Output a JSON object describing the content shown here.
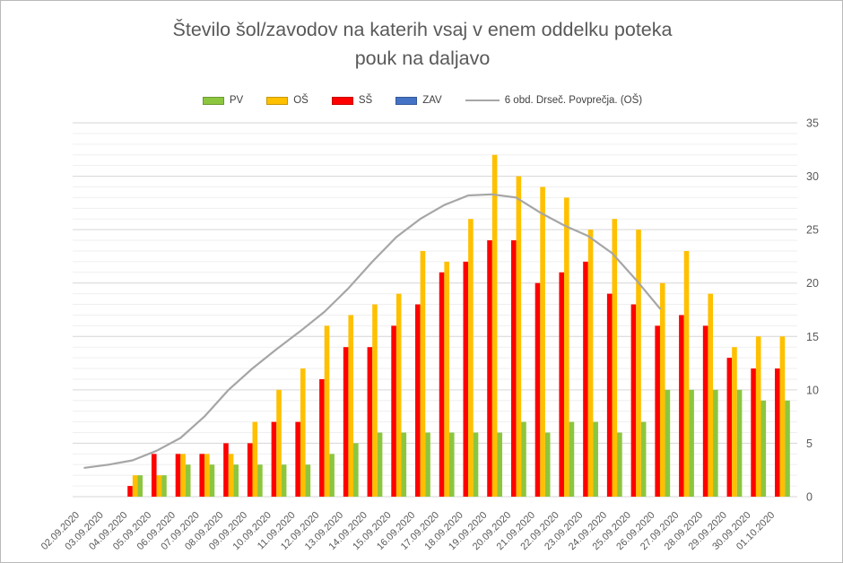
{
  "title": {
    "line1": "Število šol/zavodov na katerih vsaj v enem oddelku poteka",
    "line2": "pouk na daljavo"
  },
  "colors": {
    "pv_green": "#8CC63F",
    "os_yellow": "#FFC000",
    "ss_red": "#FF0000",
    "zav_blue": "#4472C4",
    "ma_gray": "#A6A6A6",
    "text_gray": "#595959",
    "grid_major": "#D6D6D6",
    "grid_minor": "#EFEFEF"
  },
  "chart_data": {
    "type": "bar",
    "title": "Število šol/zavodov na katerih vsaj v enem oddelku poteka pouk na daljavo",
    "xlabel": "",
    "ylabel": "",
    "ylim": [
      0,
      35
    ],
    "y_ticks": [
      0,
      5,
      10,
      15,
      20,
      25,
      30,
      35
    ],
    "y_axis_side": "right",
    "grid": {
      "minor_step": 1,
      "major_step": 5
    },
    "legend_position": "top",
    "categories": [
      "02.09.2020",
      "03.09.2020",
      "04.09.2020",
      "05.09.2020",
      "06.09.2020",
      "07.09.2020",
      "08.09.2020",
      "09.09.2020",
      "10.09.2020",
      "11.09.2020",
      "12.09.2020",
      "13.09.2020",
      "14.09.2020",
      "15.09.2020",
      "16.09.2020",
      "17.09.2020",
      "18.09.2020",
      "19.09.2020",
      "20.09.2020",
      "21.09.2020",
      "22.09.2020",
      "23.09.2020",
      "24.09.2020",
      "25.09.2020",
      "26.09.2020",
      "27.09.2020",
      "28.09.2020",
      "29.09.2020",
      "30.09.2020",
      "01.10.2020"
    ],
    "series": [
      {
        "name": "PV",
        "type": "bar",
        "color": "#8CC63F",
        "values": [
          0,
          0,
          2,
          2,
          3,
          3,
          3,
          3,
          3,
          3,
          4,
          5,
          6,
          6,
          6,
          6,
          6,
          6,
          7,
          6,
          7,
          7,
          6,
          7,
          10,
          10,
          10,
          10,
          9,
          9
        ]
      },
      {
        "name": "OŠ",
        "type": "bar",
        "color": "#FFC000",
        "values": [
          0,
          0,
          2,
          2,
          4,
          4,
          4,
          7,
          10,
          12,
          16,
          17,
          18,
          19,
          23,
          22,
          26,
          32,
          30,
          29,
          28,
          25,
          26,
          25,
          20,
          23,
          19,
          14,
          15,
          15
        ]
      },
      {
        "name": "SŠ",
        "type": "bar",
        "color": "#FF0000",
        "values": [
          0,
          0,
          1,
          4,
          4,
          4,
          5,
          5,
          7,
          7,
          11,
          14,
          14,
          16,
          18,
          21,
          22,
          24,
          24,
          20,
          21,
          22,
          19,
          18,
          16,
          17,
          16,
          13,
          12,
          12
        ]
      },
      {
        "name": "ZAV",
        "type": "bar",
        "color": "#4472C4",
        "values": [
          0,
          0,
          0,
          0,
          0,
          0,
          0,
          0,
          0,
          0,
          0,
          0,
          0,
          0,
          0,
          0,
          0,
          0,
          0,
          0,
          0,
          0,
          0,
          0,
          0,
          0,
          0,
          0,
          0,
          0
        ]
      },
      {
        "name": "6 obd. Drseč. Povprečja. (OŠ)",
        "type": "line",
        "color": "#A6A6A6",
        "values": [
          2.7,
          3.0,
          3.4,
          4.3,
          5.5,
          7.5,
          10.0,
          12.0,
          13.8,
          15.5,
          17.3,
          19.5,
          22.0,
          24.3,
          26.0,
          27.3,
          28.2,
          28.3,
          28.0,
          26.6,
          25.4,
          24.4,
          22.8,
          20.3,
          17.6,
          null,
          null,
          null,
          null,
          null
        ]
      }
    ]
  }
}
